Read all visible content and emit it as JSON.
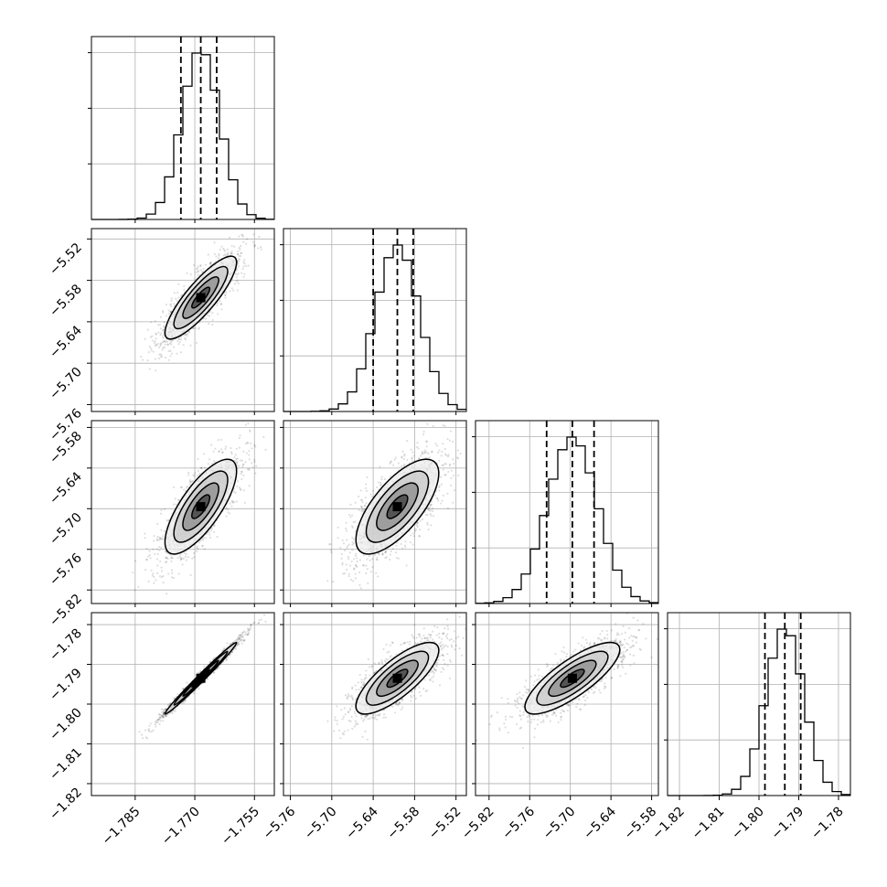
{
  "chart_data": {
    "type": "corner",
    "title": "",
    "parameters": [
      {
        "name": "",
        "median": -1.7685,
        "q16": -1.7735,
        "q84": -1.7645,
        "sigma": 0.0045,
        "hist_range": [
          -1.796,
          -1.75
        ],
        "axis_ticks": [
          "−1.785",
          "−1.770",
          "−1.755"
        ],
        "axis_tick_values": [
          -1.785,
          -1.77,
          -1.755
        ]
      },
      {
        "name": "",
        "median": -5.605,
        "q16": -5.64,
        "q84": -5.582,
        "sigma": 0.03,
        "hist_range": [
          -5.77,
          -5.505
        ],
        "axis_ticks": [
          "−5.76",
          "−5.70",
          "−5.64",
          "−5.58",
          "−5.52"
        ],
        "axis_tick_values": [
          -5.76,
          -5.7,
          -5.64,
          -5.58,
          -5.52
        ]
      },
      {
        "name": "",
        "median": -5.697,
        "q16": -5.735,
        "q84": -5.665,
        "sigma": 0.035,
        "hist_range": [
          -5.84,
          -5.57
        ],
        "axis_ticks": [
          "−5.82",
          "−5.76",
          "−5.70",
          "−5.64",
          "−5.58"
        ],
        "axis_tick_values": [
          -5.82,
          -5.76,
          -5.7,
          -5.64,
          -5.58
        ]
      },
      {
        "name": "",
        "median": -1.7935,
        "q16": -1.7985,
        "q84": -1.7895,
        "sigma": 0.0045,
        "hist_range": [
          -1.823,
          -1.777
        ],
        "axis_ticks": [
          "−1.82",
          "−1.81",
          "−1.80",
          "−1.79",
          "−1.78"
        ],
        "axis_tick_values": [
          -1.82,
          -1.81,
          -1.8,
          -1.79,
          -1.78
        ]
      }
    ],
    "correlations": {
      "1_0": 0.85,
      "2_0": 0.75,
      "2_1": 0.7,
      "3_0": 0.99,
      "3_1": 0.78,
      "3_2": 0.8
    },
    "histogram": {
      "bins": 20,
      "quantiles": [
        0.16,
        0.5,
        0.84
      ],
      "line_style": "step"
    },
    "contour_levels_sigma": [
      0.5,
      1.0,
      1.5,
      2.0
    ],
    "grid": true,
    "colors": {
      "line": "#000000",
      "grid": "#b0b0b0",
      "points": "#000000"
    }
  }
}
